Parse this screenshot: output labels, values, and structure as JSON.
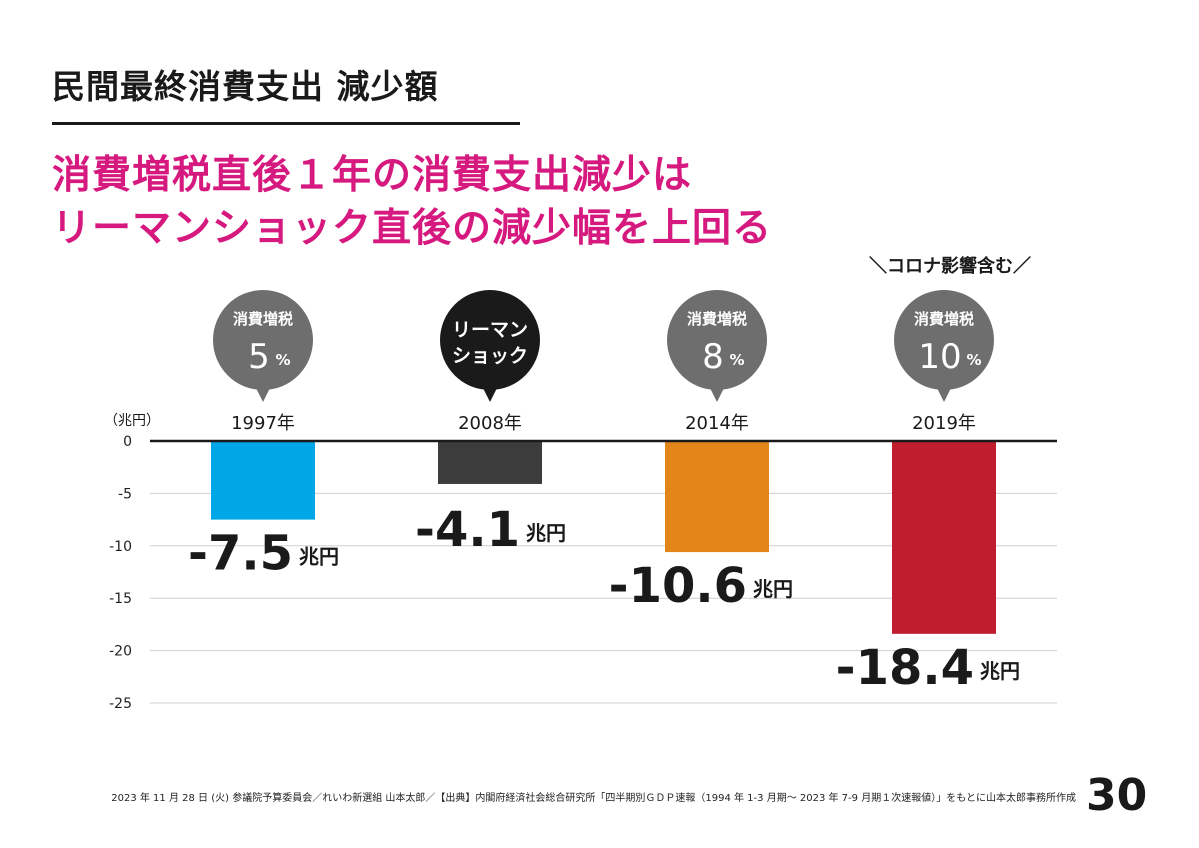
{
  "title": "民間最終消費支出 減少額",
  "headline": {
    "line1": "消費増税直後１年の消費支出減少は",
    "line2": "リーマンショック直後の減少幅を上回る"
  },
  "note": "＼コロナ影響含む／",
  "unit_label": "（兆円）",
  "colors": {
    "accent": "#d6197e",
    "bubble_gray": "#6e6e6e",
    "bubble_dark": "#1a1a1a"
  },
  "chart_data": {
    "type": "bar",
    "categories": [
      "1997年",
      "2008年",
      "2014年",
      "2019年"
    ],
    "values": [
      -7.5,
      -4.1,
      -10.6,
      -18.4
    ],
    "colors": [
      "#00a6e6",
      "#3c3c3c",
      "#e2861a",
      "#c01d2e"
    ],
    "value_labels": [
      "-7.5",
      "-4.1",
      "-10.6",
      "-18.4"
    ],
    "value_unit": "兆円",
    "ylim": [
      -25,
      0
    ],
    "yticks": [
      0,
      -5,
      -10,
      -15,
      -20,
      -25
    ],
    "grid": true,
    "bubbles": [
      {
        "line1": "消費増税",
        "line2": "5",
        "suffix": "%",
        "style": "gray"
      },
      {
        "line1": "リーマン",
        "line2": "ショック",
        "suffix": "",
        "style": "dark"
      },
      {
        "line1": "消費増税",
        "line2": "8",
        "suffix": "%",
        "style": "gray"
      },
      {
        "line1": "消費増税",
        "line2": "10",
        "suffix": "%",
        "style": "gray"
      }
    ]
  },
  "footer": {
    "source": "2023 年 11 月 28 日 (火) 参議院予算委員会／れいわ新選組 山本太郎／【出典】内閣府経済社会総合研究所「四半期別ＧＤＰ速報（1994 年 1-3 月期～ 2023 年 7-9 月期１次速報値）」をもとに山本太郎事務所作成",
    "page_number": "30"
  }
}
